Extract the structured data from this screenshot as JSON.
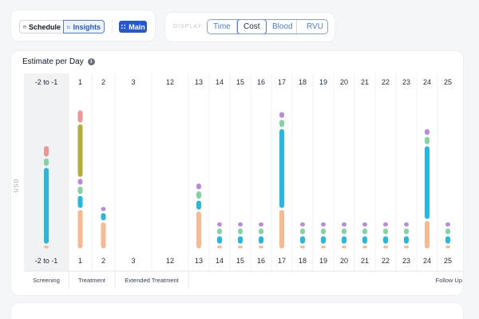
{
  "toolbar": {
    "schedule_label": "Schedule",
    "insights_label": "Insights",
    "main_label": "Main"
  },
  "display": {
    "label": "DISPLAY:",
    "options": [
      "Time",
      "Cost",
      "Blood",
      "RVU"
    ],
    "selected": "Cost"
  },
  "card": {
    "title": "Estimate per Day",
    "y_axis_label": "USD"
  },
  "chart_data": {
    "type": "bar",
    "stacked": true,
    "title": "Estimate per Day",
    "ylabel": "USD",
    "xlabel": "",
    "ylim": [
      0,
      100
    ],
    "grid": false,
    "categories": [
      "-2 to -1",
      "1",
      "2",
      "3",
      "12",
      "13",
      "14",
      "15",
      "16",
      "17",
      "18",
      "19",
      "20",
      "21",
      "22",
      "23",
      "24",
      "25"
    ],
    "phases": [
      {
        "label": "Screening",
        "days": [
          "-2 to -1"
        ]
      },
      {
        "label": "Treatment",
        "days": [
          "1",
          "2"
        ]
      },
      {
        "label": "Extended Treatment",
        "days": [
          "3",
          "12"
        ]
      },
      {
        "label": "Follow Up",
        "days": [
          "13",
          "14",
          "15",
          "16",
          "17",
          "18",
          "19",
          "20",
          "21",
          "22",
          "23",
          "24",
          "25"
        ]
      }
    ],
    "series": [
      {
        "color": "#f7b98f",
        "values": [
          3,
          26,
          18,
          0,
          0,
          25,
          3,
          3,
          3,
          26,
          3,
          3,
          3,
          3,
          3,
          3,
          19,
          3
        ]
      },
      {
        "color": "#27b8e0",
        "values": [
          50,
          9,
          6,
          0,
          0,
          7,
          6,
          6,
          6,
          52,
          6,
          6,
          6,
          6,
          6,
          6,
          48,
          6
        ]
      },
      {
        "color": "#84d3a4",
        "values": [
          6,
          6,
          0,
          0,
          0,
          6,
          5,
          5,
          5,
          6,
          5,
          5,
          5,
          5,
          5,
          5,
          6,
          5
        ]
      },
      {
        "color": "#b98be0",
        "values": [
          0,
          5,
          4,
          0,
          0,
          5,
          4,
          4,
          4,
          5,
          4,
          4,
          4,
          4,
          4,
          4,
          5,
          4
        ]
      },
      {
        "color": "#b3ae3a",
        "values": [
          0,
          35,
          0,
          0,
          0,
          0,
          0,
          0,
          0,
          0,
          0,
          0,
          0,
          0,
          0,
          0,
          0,
          0
        ]
      },
      {
        "color": "#ef9595",
        "values": [
          8,
          9,
          0,
          0,
          0,
          0,
          0,
          0,
          0,
          0,
          0,
          0,
          0,
          0,
          0,
          0,
          0,
          0
        ]
      }
    ]
  }
}
